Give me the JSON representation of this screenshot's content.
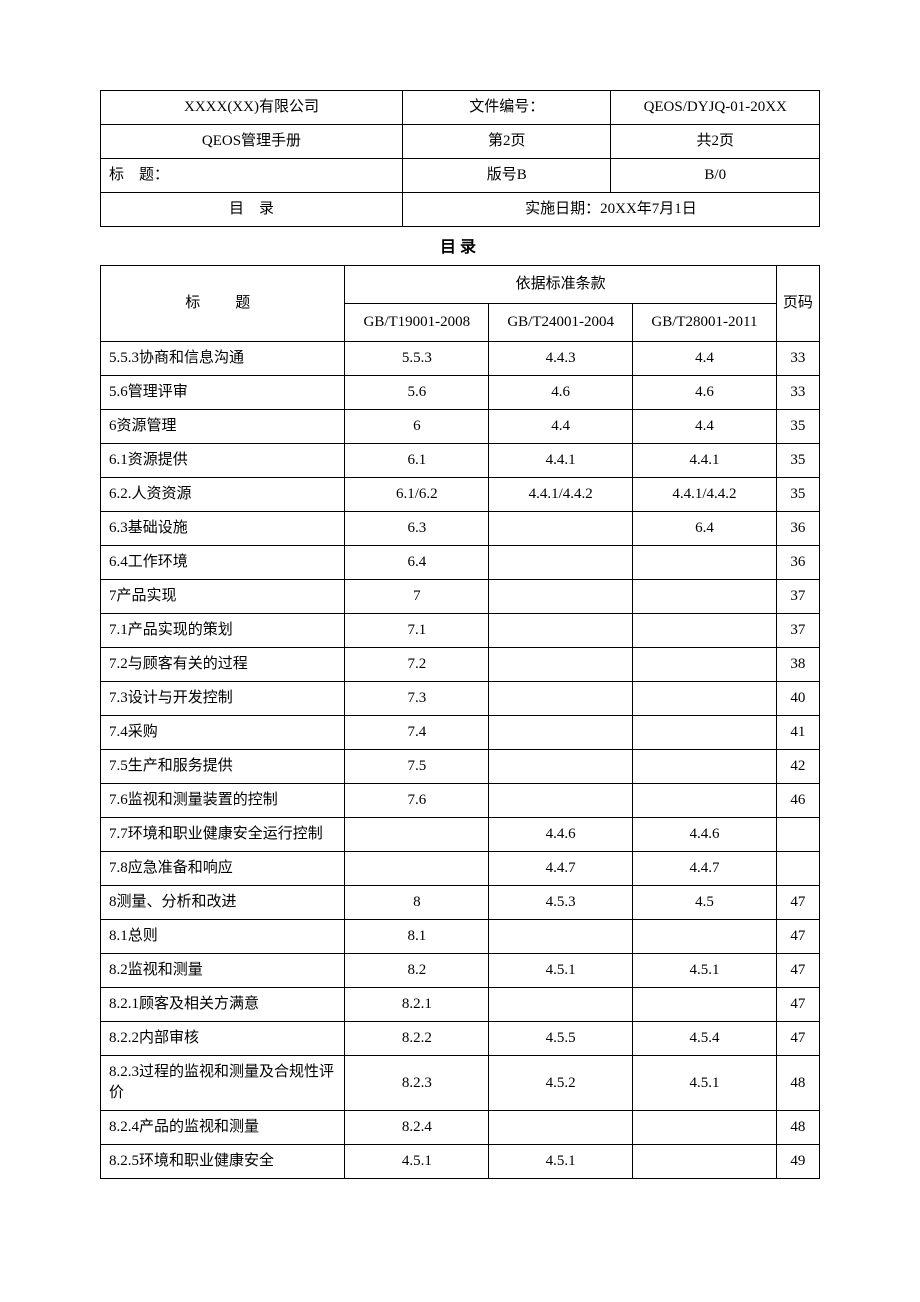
{
  "header": {
    "company": "XXXX(XX)有限公司",
    "manual": "QEOS管理手册",
    "docno_label": "文件编号：",
    "docno_value": "QEOS/DYJQ-01-20XX",
    "page_current": "第2页",
    "page_total": "共2页",
    "subject_label": "标　题：",
    "version_label": "版号B",
    "version_value": "B/0",
    "subject_value": "目　录",
    "effective_label_value": "实施日期：20XX年7月1日"
  },
  "toc": {
    "heading": "目录",
    "col_title": "标　题",
    "col_basis": "依据标准条款",
    "col_page": "页码",
    "std1": "GB/T19001-2008",
    "std2": "GB/T24001-2004",
    "std3": "GB/T28001-2011",
    "rows": [
      {
        "t": "5.5.3协商和信息沟通",
        "c1": "5.5.3",
        "c2": "4.4.3",
        "c3": "4.4",
        "p": "33"
      },
      {
        "t": "5.6管理评审",
        "c1": "5.6",
        "c2": "4.6",
        "c3": "4.6",
        "p": "33"
      },
      {
        "t": "6资源管理",
        "c1": "6",
        "c2": "4.4",
        "c3": "4.4",
        "p": "35"
      },
      {
        "t": "6.1资源提供",
        "c1": "6.1",
        "c2": "4.4.1",
        "c3": "4.4.1",
        "p": "35"
      },
      {
        "t": "6.2.人资资源",
        "c1": "6.1/6.2",
        "c2": "4.4.1/4.4.2",
        "c3": "4.4.1/4.4.2",
        "p": "35"
      },
      {
        "t": "6.3基础设施",
        "c1": "6.3",
        "c2": "",
        "c3": "6.4",
        "p": "36"
      },
      {
        "t": "6.4工作环境",
        "c1": "6.4",
        "c2": "",
        "c3": "",
        "p": "36"
      },
      {
        "t": "7产品实现",
        "c1": "7",
        "c2": "",
        "c3": "",
        "p": "37"
      },
      {
        "t": "7.1产品实现的策划",
        "c1": "7.1",
        "c2": "",
        "c3": "",
        "p": "37"
      },
      {
        "t": "7.2与顾客有关的过程",
        "c1": "7.2",
        "c2": "",
        "c3": "",
        "p": "38"
      },
      {
        "t": "7.3设计与开发控制",
        "c1": "7.3",
        "c2": "",
        "c3": "",
        "p": "40"
      },
      {
        "t": "7.4采购",
        "c1": "7.4",
        "c2": "",
        "c3": "",
        "p": "41"
      },
      {
        "t": "7.5生产和服务提供",
        "c1": "7.5",
        "c2": "",
        "c3": "",
        "p": "42"
      },
      {
        "t": "7.6监视和测量装置的控制",
        "c1": "7.6",
        "c2": "",
        "c3": "",
        "p": "46"
      },
      {
        "t": "7.7环境和职业健康安全运行控制",
        "c1": "",
        "c2": "4.4.6",
        "c3": "4.4.6",
        "p": ""
      },
      {
        "t": "7.8应急准备和响应",
        "c1": "",
        "c2": "4.4.7",
        "c3": "4.4.7",
        "p": ""
      },
      {
        "t": "8测量、分析和改进",
        "c1": "8",
        "c2": "4.5.3",
        "c3": "4.5",
        "p": "47"
      },
      {
        "t": "8.1总则",
        "c1": "8.1",
        "c2": "",
        "c3": "",
        "p": "47"
      },
      {
        "t": "8.2监视和测量",
        "c1": "8.2",
        "c2": "4.5.1",
        "c3": "4.5.1",
        "p": "47"
      },
      {
        "t": "8.2.1顾客及相关方满意",
        "c1": "8.2.1",
        "c2": "",
        "c3": "",
        "p": "47"
      },
      {
        "t": "8.2.2内部审核",
        "c1": "8.2.2",
        "c2": "4.5.5",
        "c3": "4.5.4",
        "p": "47"
      },
      {
        "t": "8.2.3过程的监视和测量及合规性评价",
        "c1": "8.2.3",
        "c2": "4.5.2",
        "c3": "4.5.1",
        "p": "48"
      },
      {
        "t": "8.2.4产品的监视和测量",
        "c1": "8.2.4",
        "c2": "",
        "c3": "",
        "p": "48"
      },
      {
        "t": "8.2.5环境和职业健康安全",
        "c1": "4.5.1",
        "c2": "4.5.1",
        "c3": "",
        "p": "49"
      }
    ]
  }
}
